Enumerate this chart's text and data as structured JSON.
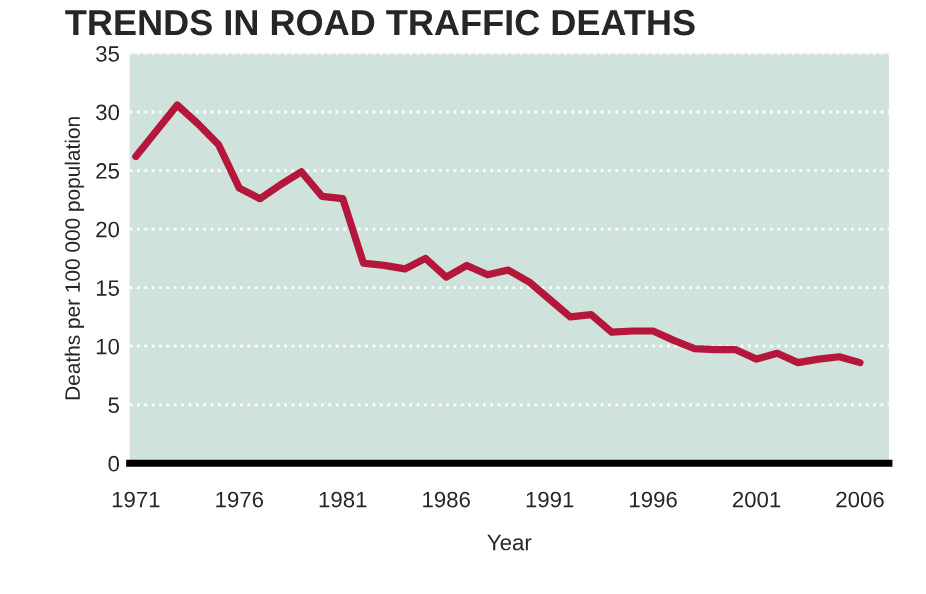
{
  "chart_data": {
    "type": "line",
    "title": "TRENDS IN ROAD TRAFFIC DEATHS",
    "xlabel": "Year",
    "ylabel": "Deaths per 100 000 population",
    "x": [
      1971,
      1972,
      1973,
      1974,
      1975,
      1976,
      1977,
      1978,
      1979,
      1980,
      1981,
      1982,
      1983,
      1984,
      1985,
      1986,
      1987,
      1988,
      1989,
      1990,
      1991,
      1992,
      1993,
      1994,
      1995,
      1996,
      1997,
      1998,
      1999,
      2000,
      2001,
      2002,
      2003,
      2004,
      2005,
      2006
    ],
    "series": [
      {
        "color": "#b5163b",
        "values": [
          26.2,
          28.4,
          30.6,
          29.0,
          27.2,
          23.5,
          22.6,
          23.8,
          24.9,
          22.8,
          22.6,
          17.1,
          16.9,
          16.6,
          17.5,
          15.9,
          16.9,
          16.1,
          16.5,
          15.5,
          14.0,
          12.5,
          12.7,
          11.2,
          11.3,
          11.3,
          10.5,
          9.8,
          9.7,
          9.7,
          8.9,
          9.4,
          8.6,
          8.9,
          9.1,
          8.6
        ]
      }
    ],
    "xlim": [
      1970.7,
      2007.4
    ],
    "xticks": [
      1971,
      1976,
      1981,
      1986,
      1991,
      1996,
      2001,
      2006
    ],
    "ylim": [
      0,
      35
    ],
    "yticks": [
      0,
      5,
      10,
      15,
      20,
      25,
      30,
      35
    ],
    "grid": "y",
    "legend": false,
    "marker": "none",
    "line_style": "solid"
  }
}
